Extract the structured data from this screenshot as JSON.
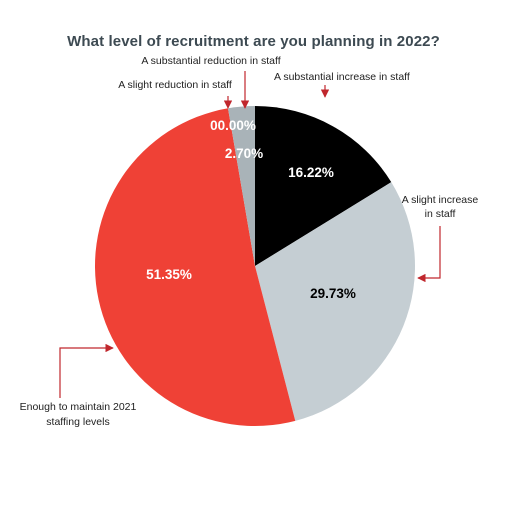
{
  "chart_data": {
    "type": "pie",
    "title": "What level of recruitment are you planning in 2022?",
    "start_angle_deg": 0,
    "direction": "clockwise",
    "slices": [
      {
        "label": "A substantial increase in staff",
        "label_lines": [
          "A substantial increase in staff"
        ],
        "value": 16.22,
        "display": "16.22%",
        "color": "#000000",
        "text_color": "#ffffff"
      },
      {
        "label": "A slight increase in staff",
        "label_lines": [
          "A slight increase",
          "in staff"
        ],
        "value": 29.73,
        "display": "29.73%",
        "color": "#c5ced3",
        "text_color": "#000000"
      },
      {
        "label": "Enough to maintain 2021 staffing levels",
        "label_lines": [
          "Enough to maintain 2021",
          "staffing levels"
        ],
        "value": 51.35,
        "display": "51.35%",
        "color": "#ef4136",
        "text_color": "#ffffff"
      },
      {
        "label": "A slight reduction in staff",
        "label_lines": [
          "A slight reduction in staff"
        ],
        "value": 2.7,
        "display": "2.70%",
        "color": "#a9b3b8",
        "text_color": "#ffffff"
      },
      {
        "label": "A substantial reduction in staff",
        "label_lines": [
          "A substantial reduction in staff"
        ],
        "value": 0.0,
        "display": "00.00%",
        "color": "#7a868c",
        "text_color": "#ffffff"
      }
    ],
    "colors": {
      "arrow": "#c0272d",
      "title": "#3d4a52"
    }
  }
}
